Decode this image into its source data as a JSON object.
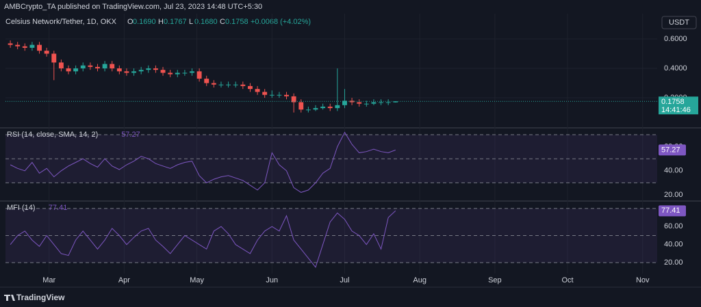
{
  "publisher": "AMBCrypto_TA published on TradingView.com, Jul 23, 2023 14:48 UTC+5:30",
  "symbol": "Celsius Network/Tether, 1D, OKX",
  "ohlc_fields": [
    {
      "key": "O",
      "value": "0.1690"
    },
    {
      "key": "H",
      "value": "0.1767"
    },
    {
      "key": "L",
      "value": "0.1680"
    },
    {
      "key": "C",
      "value": "0.1758"
    }
  ],
  "change": "+0.0068 (+4.02%)",
  "currency": "USDT",
  "countdown": "14:41:46",
  "brand": "TradingView",
  "chart_data": [
    {
      "type": "candlestick",
      "up_color": "#26a69a",
      "down_color": "#ef5350",
      "x": [
        "2023-02-13",
        "2023-02-16",
        "2023-02-19",
        "2023-02-22",
        "2023-02-25",
        "2023-02-28",
        "2023-03-03",
        "2023-03-06",
        "2023-03-09",
        "2023-03-12",
        "2023-03-15",
        "2023-03-18",
        "2023-03-21",
        "2023-03-24",
        "2023-03-27",
        "2023-03-30",
        "2023-04-02",
        "2023-04-05",
        "2023-04-08",
        "2023-04-11",
        "2023-04-14",
        "2023-04-17",
        "2023-04-20",
        "2023-04-23",
        "2023-04-26",
        "2023-04-29",
        "2023-05-02",
        "2023-05-05",
        "2023-05-08",
        "2023-05-11",
        "2023-05-14",
        "2023-05-17",
        "2023-05-20",
        "2023-05-23",
        "2023-05-26",
        "2023-05-29",
        "2023-06-01",
        "2023-06-04",
        "2023-06-07",
        "2023-06-10",
        "2023-06-13",
        "2023-06-16",
        "2023-06-19",
        "2023-06-22",
        "2023-06-25",
        "2023-06-28",
        "2023-07-01",
        "2023-07-04",
        "2023-07-07",
        "2023-07-10",
        "2023-07-13",
        "2023-07-16",
        "2023-07-19",
        "2023-07-22"
      ],
      "open": [
        0.57,
        0.56,
        0.55,
        0.54,
        0.56,
        0.52,
        0.5,
        0.44,
        0.4,
        0.38,
        0.4,
        0.42,
        0.41,
        0.4,
        0.43,
        0.4,
        0.38,
        0.37,
        0.38,
        0.39,
        0.4,
        0.39,
        0.37,
        0.36,
        0.37,
        0.37,
        0.38,
        0.33,
        0.3,
        0.29,
        0.29,
        0.29,
        0.29,
        0.28,
        0.26,
        0.24,
        0.22,
        0.22,
        0.22,
        0.21,
        0.17,
        0.12,
        0.12,
        0.13,
        0.14,
        0.13,
        0.15,
        0.18,
        0.17,
        0.16,
        0.16,
        0.17,
        0.17,
        0.169
      ],
      "high": [
        0.59,
        0.58,
        0.57,
        0.58,
        0.58,
        0.54,
        0.52,
        0.46,
        0.42,
        0.42,
        0.44,
        0.44,
        0.43,
        0.45,
        0.45,
        0.42,
        0.4,
        0.4,
        0.41,
        0.42,
        0.42,
        0.41,
        0.39,
        0.39,
        0.39,
        0.4,
        0.4,
        0.35,
        0.32,
        0.31,
        0.31,
        0.31,
        0.31,
        0.3,
        0.28,
        0.26,
        0.25,
        0.24,
        0.24,
        0.23,
        0.19,
        0.14,
        0.15,
        0.16,
        0.16,
        0.4,
        0.26,
        0.2,
        0.19,
        0.18,
        0.19,
        0.19,
        0.19,
        0.1767
      ],
      "low": [
        0.54,
        0.53,
        0.52,
        0.52,
        0.5,
        0.48,
        0.32,
        0.38,
        0.36,
        0.36,
        0.38,
        0.39,
        0.38,
        0.38,
        0.38,
        0.36,
        0.35,
        0.35,
        0.36,
        0.37,
        0.37,
        0.35,
        0.34,
        0.34,
        0.35,
        0.35,
        0.31,
        0.28,
        0.27,
        0.27,
        0.27,
        0.27,
        0.26,
        0.24,
        0.22,
        0.2,
        0.2,
        0.2,
        0.19,
        0.1,
        0.1,
        0.1,
        0.11,
        0.12,
        0.11,
        0.11,
        0.13,
        0.15,
        0.14,
        0.14,
        0.15,
        0.15,
        0.15,
        0.168
      ],
      "close": [
        0.56,
        0.55,
        0.54,
        0.56,
        0.52,
        0.5,
        0.44,
        0.4,
        0.38,
        0.4,
        0.42,
        0.41,
        0.4,
        0.43,
        0.4,
        0.38,
        0.37,
        0.38,
        0.39,
        0.4,
        0.39,
        0.37,
        0.36,
        0.37,
        0.37,
        0.38,
        0.33,
        0.3,
        0.29,
        0.29,
        0.29,
        0.29,
        0.28,
        0.26,
        0.24,
        0.22,
        0.22,
        0.22,
        0.21,
        0.17,
        0.12,
        0.12,
        0.13,
        0.14,
        0.13,
        0.15,
        0.18,
        0.17,
        0.16,
        0.16,
        0.17,
        0.17,
        0.17,
        0.1758
      ],
      "xlim": [
        "2023-02-11",
        "2023-11-07"
      ],
      "xticks": [
        {
          "value": "2023-03-01",
          "label": "Mar"
        },
        {
          "value": "2023-04-01",
          "label": "Apr"
        },
        {
          "value": "2023-05-01",
          "label": "May"
        },
        {
          "value": "2023-06-01",
          "label": "Jun"
        },
        {
          "value": "2023-07-01",
          "label": "Jul"
        },
        {
          "value": "2023-08-01",
          "label": "Aug"
        },
        {
          "value": "2023-09-01",
          "label": "Sep"
        },
        {
          "value": "2023-10-01",
          "label": "Oct"
        },
        {
          "value": "2023-11-01",
          "label": "Nov"
        }
      ],
      "ylim": [
        0.005,
        0.772
      ],
      "yticks": [
        {
          "value": 0.2,
          "label": "0.2000"
        },
        {
          "value": 0.4,
          "label": "0.4000"
        },
        {
          "value": 0.6,
          "label": "0.6000"
        }
      ],
      "grid": true
    },
    {
      "type": "line",
      "title": "RSI (14, close, SMA, 14, 2)",
      "color": "#7e57c2",
      "values": [
        45,
        42,
        40,
        47,
        38,
        42,
        35,
        40,
        44,
        47,
        50,
        46,
        43,
        50,
        44,
        41,
        45,
        48,
        52,
        50,
        46,
        44,
        42,
        45,
        47,
        48,
        36,
        30,
        33,
        35,
        36,
        34,
        32,
        28,
        24,
        30,
        55,
        45,
        40,
        26,
        22,
        24,
        30,
        38,
        42,
        60,
        72,
        62,
        55,
        56,
        58,
        56,
        55,
        57.27
      ],
      "bands": [
        70,
        50,
        30
      ],
      "ylim": [
        16,
        74
      ],
      "yticks": [
        {
          "value": 20,
          "label": "20.00"
        },
        {
          "value": 40,
          "label": "40.00"
        },
        {
          "value": 60,
          "label": "60.00"
        }
      ]
    },
    {
      "type": "line",
      "title": "MFI (14)",
      "color": "#7e57c2",
      "values": [
        40,
        50,
        55,
        45,
        38,
        50,
        40,
        30,
        28,
        45,
        55,
        45,
        35,
        45,
        58,
        50,
        40,
        48,
        55,
        58,
        45,
        38,
        30,
        40,
        50,
        45,
        40,
        35,
        55,
        60,
        52,
        40,
        35,
        30,
        45,
        55,
        60,
        55,
        72,
        45,
        35,
        25,
        15,
        40,
        65,
        75,
        68,
        55,
        50,
        40,
        52,
        35,
        70,
        77.41
      ],
      "bands": [
        80,
        50,
        20
      ],
      "ylim": [
        8,
        86
      ],
      "yticks": [
        {
          "value": 20,
          "label": "20.00"
        },
        {
          "value": 40,
          "label": "40.00"
        },
        {
          "value": 60,
          "label": "60.00"
        }
      ]
    }
  ]
}
